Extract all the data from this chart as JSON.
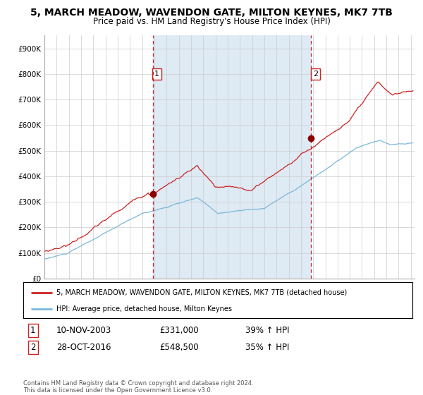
{
  "title": "5, MARCH MEADOW, WAVENDON GATE, MILTON KEYNES, MK7 7TB",
  "subtitle": "Price paid vs. HM Land Registry's House Price Index (HPI)",
  "legend_line1": "5, MARCH MEADOW, WAVENDON GATE, MILTON KEYNES, MK7 7TB (detached house)",
  "legend_line2": "HPI: Average price, detached house, Milton Keynes",
  "sale1_date": "10-NOV-2003",
  "sale1_price": 331000,
  "sale1_pct": "39% ↑ HPI",
  "sale2_date": "28-OCT-2016",
  "sale2_price": 548500,
  "sale2_pct": "35% ↑ HPI",
  "sale1_x": 2003.86,
  "sale2_x": 2016.83,
  "hpi_color": "#7ab8d9",
  "property_color": "#cc2222",
  "dot_color": "#8b0000",
  "vline_color": "#cc2222",
  "shade_color": "#deeaf4",
  "grid_color": "#cccccc",
  "ylim": [
    0,
    950000
  ],
  "xlim_start": 1995.0,
  "xlim_end": 2025.3,
  "yticks": [
    0,
    100000,
    200000,
    300000,
    400000,
    500000,
    600000,
    700000,
    800000,
    900000
  ],
  "ytick_labels": [
    "£0",
    "£100K",
    "£200K",
    "£300K",
    "£400K",
    "£500K",
    "£600K",
    "£700K",
    "£800K",
    "£900K"
  ],
  "title_fontsize": 10,
  "subtitle_fontsize": 8.5,
  "footer_text": "Contains HM Land Registry data © Crown copyright and database right 2024.\nThis data is licensed under the Open Government Licence v3.0.",
  "xticks": [
    1995,
    1996,
    1997,
    1998,
    1999,
    2000,
    2001,
    2002,
    2003,
    2004,
    2005,
    2006,
    2007,
    2008,
    2009,
    2010,
    2011,
    2012,
    2013,
    2014,
    2015,
    2016,
    2017,
    2018,
    2019,
    2020,
    2021,
    2022,
    2023,
    2024,
    2025
  ]
}
